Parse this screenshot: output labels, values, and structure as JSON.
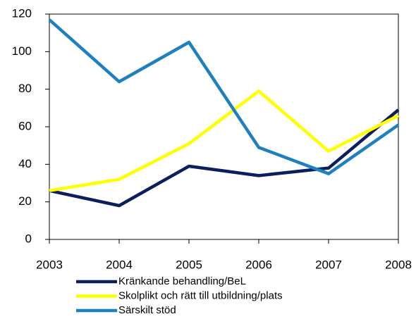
{
  "chart_data": {
    "type": "line",
    "x": [
      2003,
      2004,
      2005,
      2006,
      2007,
      2008
    ],
    "xlim": [
      2003,
      2008
    ],
    "xticks": [
      2003,
      2004,
      2005,
      2006,
      2007,
      2008
    ],
    "ylim": [
      0,
      120
    ],
    "yticks": [
      0,
      20,
      40,
      60,
      80,
      100,
      120
    ],
    "grid": false,
    "legend": "bottom",
    "series": [
      {
        "name": "Kränkande behandling/BeL",
        "color": "#0b1f5e",
        "values": [
          26,
          18,
          39,
          34,
          38,
          69
        ]
      },
      {
        "name": "Skolplikt och rätt till utbildning/plats",
        "color": "#ffff00",
        "values": [
          26,
          32,
          51,
          79,
          47,
          66
        ]
      },
      {
        "name": "Särskilt stöd",
        "color": "#1f80c0",
        "values": [
          117,
          84,
          105,
          49,
          35,
          61
        ]
      }
    ]
  }
}
